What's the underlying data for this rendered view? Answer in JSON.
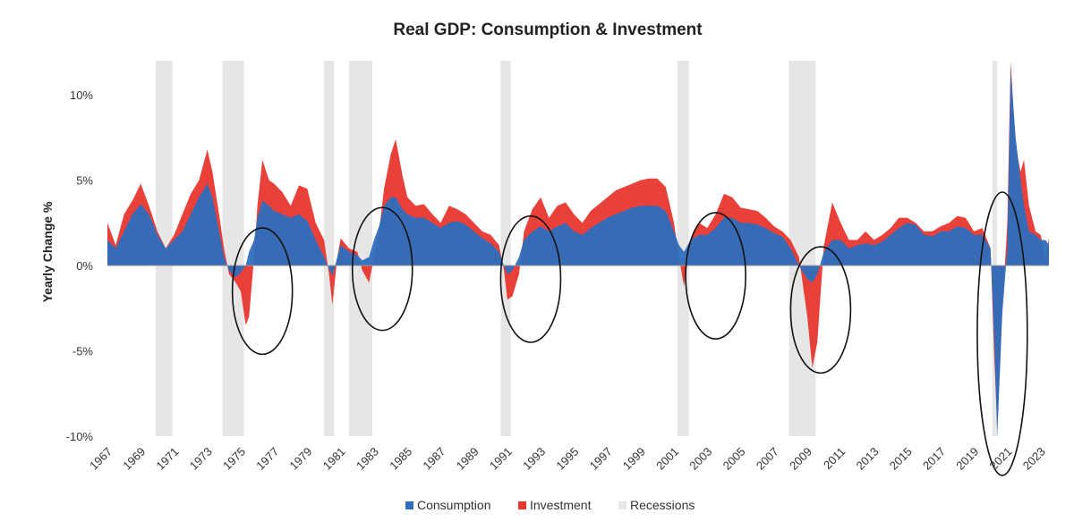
{
  "colors": {
    "consumption": "#2e6ebd",
    "investment": "#e8372f",
    "recessions": "#e6e6e6",
    "annotation": "#111111"
  },
  "chart_data": {
    "type": "area",
    "title": "Real GDP: Consumption & Investment",
    "xlabel": "",
    "ylabel": "Yearly Change %",
    "xlim": [
      1967,
      2023.5
    ],
    "ylim": [
      -10,
      12
    ],
    "y_ticks": [
      {
        "value": 10,
        "label": "10%"
      },
      {
        "value": 5,
        "label": "5%"
      },
      {
        "value": 0,
        "label": "0%"
      },
      {
        "value": -5,
        "label": "-5%"
      },
      {
        "value": -10,
        "label": "-10%"
      }
    ],
    "x_ticks": [
      "1967",
      "1969",
      "1971",
      "1973",
      "1975",
      "1977",
      "1979",
      "1981",
      "1983",
      "1985",
      "1987",
      "1989",
      "1991",
      "1993",
      "1995",
      "1997",
      "1999",
      "2001",
      "2003",
      "2005",
      "2007",
      "2009",
      "2011",
      "2013",
      "2015",
      "2017",
      "2019",
      "2021",
      "2023"
    ],
    "grid": false,
    "legend": {
      "position": "bottom",
      "entries": [
        "Consumption",
        "Investment",
        "Recessions"
      ]
    },
    "recessions": [
      [
        1969.9,
        1970.9
      ],
      [
        1973.9,
        1975.2
      ],
      [
        1980.0,
        1980.6
      ],
      [
        1981.5,
        1982.9
      ],
      [
        1990.6,
        1991.2
      ],
      [
        2001.2,
        2001.9
      ],
      [
        2007.9,
        2009.5
      ],
      [
        2020.1,
        2020.4
      ]
    ],
    "series": [
      {
        "name": "Investment",
        "points": [
          [
            1967.0,
            2.5
          ],
          [
            1967.5,
            1.2
          ],
          [
            1968.0,
            3.0
          ],
          [
            1968.5,
            3.8
          ],
          [
            1969.0,
            4.8
          ],
          [
            1969.5,
            3.5
          ],
          [
            1970.0,
            2.0
          ],
          [
            1970.5,
            1.0
          ],
          [
            1971.0,
            1.8
          ],
          [
            1971.5,
            3.0
          ],
          [
            1972.0,
            4.2
          ],
          [
            1972.5,
            5.0
          ],
          [
            1973.0,
            6.8
          ],
          [
            1973.3,
            5.5
          ],
          [
            1973.7,
            3.0
          ],
          [
            1974.0,
            1.0
          ],
          [
            1974.3,
            -0.5
          ],
          [
            1974.7,
            -1.0
          ],
          [
            1975.0,
            -1.5
          ],
          [
            1975.3,
            -3.5
          ],
          [
            1975.5,
            -3.0
          ],
          [
            1975.8,
            0.5
          ],
          [
            1976.0,
            3.5
          ],
          [
            1976.3,
            6.2
          ],
          [
            1976.7,
            5.0
          ],
          [
            1977.0,
            4.8
          ],
          [
            1977.5,
            4.3
          ],
          [
            1978.0,
            3.5
          ],
          [
            1978.5,
            4.7
          ],
          [
            1979.0,
            4.5
          ],
          [
            1979.5,
            2.5
          ],
          [
            1980.0,
            1.5
          ],
          [
            1980.3,
            -0.5
          ],
          [
            1980.5,
            -2.3
          ],
          [
            1980.8,
            0.5
          ],
          [
            1981.0,
            1.6
          ],
          [
            1981.5,
            1.0
          ],
          [
            1982.0,
            0.8
          ],
          [
            1982.3,
            -0.3
          ],
          [
            1982.7,
            -1.0
          ],
          [
            1983.0,
            0.5
          ],
          [
            1983.3,
            2.0
          ],
          [
            1983.6,
            4.5
          ],
          [
            1984.0,
            6.5
          ],
          [
            1984.3,
            7.4
          ],
          [
            1984.7,
            5.3
          ],
          [
            1985.0,
            4.0
          ],
          [
            1985.5,
            3.5
          ],
          [
            1986.0,
            3.6
          ],
          [
            1986.5,
            3.0
          ],
          [
            1987.0,
            2.5
          ],
          [
            1987.5,
            3.5
          ],
          [
            1988.0,
            3.3
          ],
          [
            1988.5,
            3.0
          ],
          [
            1989.0,
            2.5
          ],
          [
            1989.5,
            2.0
          ],
          [
            1990.0,
            1.8
          ],
          [
            1990.5,
            1.2
          ],
          [
            1990.8,
            -0.3
          ],
          [
            1991.0,
            -2.0
          ],
          [
            1991.3,
            -1.8
          ],
          [
            1991.7,
            -0.5
          ],
          [
            1992.0,
            2.0
          ],
          [
            1992.5,
            3.3
          ],
          [
            1993.0,
            4.0
          ],
          [
            1993.5,
            2.8
          ],
          [
            1994.0,
            3.5
          ],
          [
            1994.5,
            3.7
          ],
          [
            1995.0,
            3.0
          ],
          [
            1995.5,
            2.5
          ],
          [
            1996.0,
            3.2
          ],
          [
            1996.5,
            3.6
          ],
          [
            1997.0,
            4.0
          ],
          [
            1997.5,
            4.4
          ],
          [
            1998.0,
            4.6
          ],
          [
            1998.5,
            4.8
          ],
          [
            1999.0,
            5.0
          ],
          [
            1999.5,
            5.1
          ],
          [
            2000.0,
            5.1
          ],
          [
            2000.5,
            4.6
          ],
          [
            2001.0,
            2.5
          ],
          [
            2001.3,
            0.5
          ],
          [
            2001.6,
            -1.2
          ],
          [
            2002.0,
            1.5
          ],
          [
            2002.5,
            2.5
          ],
          [
            2003.0,
            2.2
          ],
          [
            2003.5,
            3.0
          ],
          [
            2004.0,
            4.2
          ],
          [
            2004.5,
            4.0
          ],
          [
            2005.0,
            3.4
          ],
          [
            2005.5,
            3.3
          ],
          [
            2006.0,
            3.2
          ],
          [
            2006.5,
            2.8
          ],
          [
            2007.0,
            2.3
          ],
          [
            2007.5,
            2.0
          ],
          [
            2008.0,
            1.5
          ],
          [
            2008.5,
            0.5
          ],
          [
            2009.0,
            -3.0
          ],
          [
            2009.3,
            -6.0
          ],
          [
            2009.6,
            -4.5
          ],
          [
            2010.0,
            1.2
          ],
          [
            2010.5,
            3.7
          ],
          [
            2011.0,
            2.5
          ],
          [
            2011.5,
            1.5
          ],
          [
            2012.0,
            1.5
          ],
          [
            2012.5,
            2.0
          ],
          [
            2013.0,
            1.5
          ],
          [
            2013.5,
            1.8
          ],
          [
            2014.0,
            2.2
          ],
          [
            2014.5,
            2.8
          ],
          [
            2015.0,
            2.8
          ],
          [
            2015.5,
            2.5
          ],
          [
            2016.0,
            2.0
          ],
          [
            2016.5,
            2.0
          ],
          [
            2017.0,
            2.3
          ],
          [
            2017.5,
            2.5
          ],
          [
            2018.0,
            2.9
          ],
          [
            2018.5,
            2.8
          ],
          [
            2019.0,
            2.0
          ],
          [
            2019.5,
            2.2
          ],
          [
            2020.0,
            1.0
          ],
          [
            2020.2,
            -5.0
          ],
          [
            2020.4,
            -9.5
          ],
          [
            2020.7,
            -2.5
          ],
          [
            2021.0,
            2.5
          ],
          [
            2021.2,
            12.5
          ],
          [
            2021.5,
            7.0
          ],
          [
            2021.8,
            5.5
          ],
          [
            2022.0,
            6.2
          ],
          [
            2022.3,
            3.5
          ],
          [
            2022.7,
            2.0
          ],
          [
            2023.0,
            1.8
          ],
          [
            2023.3,
            0.5
          ],
          [
            2023.5,
            1.6
          ]
        ]
      },
      {
        "name": "Consumption",
        "points": [
          [
            1967.0,
            1.5
          ],
          [
            1967.5,
            1.0
          ],
          [
            1968.0,
            2.0
          ],
          [
            1968.5,
            3.0
          ],
          [
            1969.0,
            3.6
          ],
          [
            1969.5,
            3.0
          ],
          [
            1970.0,
            1.8
          ],
          [
            1970.5,
            1.0
          ],
          [
            1971.0,
            1.5
          ],
          [
            1971.5,
            2.0
          ],
          [
            1972.0,
            3.0
          ],
          [
            1972.5,
            4.0
          ],
          [
            1973.0,
            4.8
          ],
          [
            1973.3,
            4.0
          ],
          [
            1973.7,
            2.0
          ],
          [
            1974.0,
            0.5
          ],
          [
            1974.3,
            -0.3
          ],
          [
            1974.7,
            -0.7
          ],
          [
            1975.0,
            -0.4
          ],
          [
            1975.3,
            0.0
          ],
          [
            1975.5,
            0.8
          ],
          [
            1975.8,
            1.5
          ],
          [
            1976.0,
            2.8
          ],
          [
            1976.3,
            3.8
          ],
          [
            1976.7,
            3.5
          ],
          [
            1977.0,
            3.2
          ],
          [
            1977.5,
            3.0
          ],
          [
            1978.0,
            2.8
          ],
          [
            1978.5,
            3.0
          ],
          [
            1979.0,
            2.6
          ],
          [
            1979.5,
            1.5
          ],
          [
            1980.0,
            0.5
          ],
          [
            1980.3,
            -0.2
          ],
          [
            1980.5,
            -0.6
          ],
          [
            1980.8,
            0.5
          ],
          [
            1981.0,
            1.2
          ],
          [
            1981.5,
            0.8
          ],
          [
            1982.0,
            0.6
          ],
          [
            1982.3,
            0.3
          ],
          [
            1982.7,
            0.5
          ],
          [
            1983.0,
            1.5
          ],
          [
            1983.3,
            2.3
          ],
          [
            1983.6,
            3.5
          ],
          [
            1984.0,
            4.0
          ],
          [
            1984.3,
            4.0
          ],
          [
            1984.7,
            3.3
          ],
          [
            1985.0,
            3.0
          ],
          [
            1985.5,
            2.8
          ],
          [
            1986.0,
            2.8
          ],
          [
            1986.5,
            2.5
          ],
          [
            1987.0,
            2.2
          ],
          [
            1987.5,
            2.5
          ],
          [
            1988.0,
            2.6
          ],
          [
            1988.5,
            2.4
          ],
          [
            1989.0,
            2.0
          ],
          [
            1989.5,
            1.6
          ],
          [
            1990.0,
            1.3
          ],
          [
            1990.5,
            0.8
          ],
          [
            1990.8,
            0.0
          ],
          [
            1991.0,
            -0.5
          ],
          [
            1991.3,
            -0.3
          ],
          [
            1991.7,
            0.5
          ],
          [
            1992.0,
            1.5
          ],
          [
            1992.5,
            2.0
          ],
          [
            1993.0,
            2.3
          ],
          [
            1993.5,
            2.0
          ],
          [
            1994.0,
            2.3
          ],
          [
            1994.5,
            2.5
          ],
          [
            1995.0,
            2.0
          ],
          [
            1995.5,
            1.8
          ],
          [
            1996.0,
            2.2
          ],
          [
            1996.5,
            2.5
          ],
          [
            1997.0,
            2.8
          ],
          [
            1997.5,
            3.0
          ],
          [
            1998.0,
            3.2
          ],
          [
            1998.5,
            3.4
          ],
          [
            1999.0,
            3.5
          ],
          [
            1999.5,
            3.5
          ],
          [
            2000.0,
            3.5
          ],
          [
            2000.5,
            3.2
          ],
          [
            2001.0,
            2.0
          ],
          [
            2001.3,
            1.2
          ],
          [
            2001.6,
            0.8
          ],
          [
            2002.0,
            1.5
          ],
          [
            2002.5,
            1.8
          ],
          [
            2003.0,
            1.8
          ],
          [
            2003.5,
            2.2
          ],
          [
            2004.0,
            2.8
          ],
          [
            2004.5,
            2.8
          ],
          [
            2005.0,
            2.5
          ],
          [
            2005.5,
            2.5
          ],
          [
            2006.0,
            2.4
          ],
          [
            2006.5,
            2.2
          ],
          [
            2007.0,
            1.9
          ],
          [
            2007.5,
            1.7
          ],
          [
            2008.0,
            1.0
          ],
          [
            2008.5,
            0.0
          ],
          [
            2009.0,
            -0.8
          ],
          [
            2009.3,
            -1.0
          ],
          [
            2009.6,
            -0.5
          ],
          [
            2010.0,
            0.8
          ],
          [
            2010.5,
            1.5
          ],
          [
            2011.0,
            1.5
          ],
          [
            2011.5,
            1.0
          ],
          [
            2012.0,
            1.2
          ],
          [
            2012.5,
            1.3
          ],
          [
            2013.0,
            1.2
          ],
          [
            2013.5,
            1.4
          ],
          [
            2014.0,
            1.8
          ],
          [
            2014.5,
            2.2
          ],
          [
            2015.0,
            2.5
          ],
          [
            2015.5,
            2.4
          ],
          [
            2016.0,
            1.8
          ],
          [
            2016.5,
            1.7
          ],
          [
            2017.0,
            2.0
          ],
          [
            2017.5,
            2.0
          ],
          [
            2018.0,
            2.3
          ],
          [
            2018.5,
            2.2
          ],
          [
            2019.0,
            1.8
          ],
          [
            2019.5,
            1.8
          ],
          [
            2020.0,
            1.0
          ],
          [
            2020.2,
            -4.0
          ],
          [
            2020.4,
            -10.0
          ],
          [
            2020.7,
            -2.8
          ],
          [
            2021.0,
            1.0
          ],
          [
            2021.2,
            11.5
          ],
          [
            2021.5,
            7.5
          ],
          [
            2021.8,
            5.0
          ],
          [
            2022.0,
            3.5
          ],
          [
            2022.3,
            2.0
          ],
          [
            2022.7,
            1.8
          ],
          [
            2023.0,
            1.5
          ],
          [
            2023.3,
            1.5
          ],
          [
            2023.5,
            1.2
          ]
        ]
      }
    ]
  },
  "annotations": [
    {
      "center_year": 1976.3,
      "center_value": -1.5,
      "radius_years": 1.8,
      "radius_value": 3.7
    },
    {
      "center_year": 1983.5,
      "center_value": -0.2,
      "radius_years": 1.8,
      "radius_value": 3.6
    },
    {
      "center_year": 1992.4,
      "center_value": -0.8,
      "radius_years": 1.8,
      "radius_value": 3.7
    },
    {
      "center_year": 2003.5,
      "center_value": -0.6,
      "radius_years": 1.8,
      "radius_value": 3.7
    },
    {
      "center_year": 2009.8,
      "center_value": -2.6,
      "radius_years": 1.8,
      "radius_value": 3.7
    },
    {
      "center_year": 2020.7,
      "center_value": -4.0,
      "radius_years": 1.5,
      "radius_value": 8.3
    }
  ]
}
